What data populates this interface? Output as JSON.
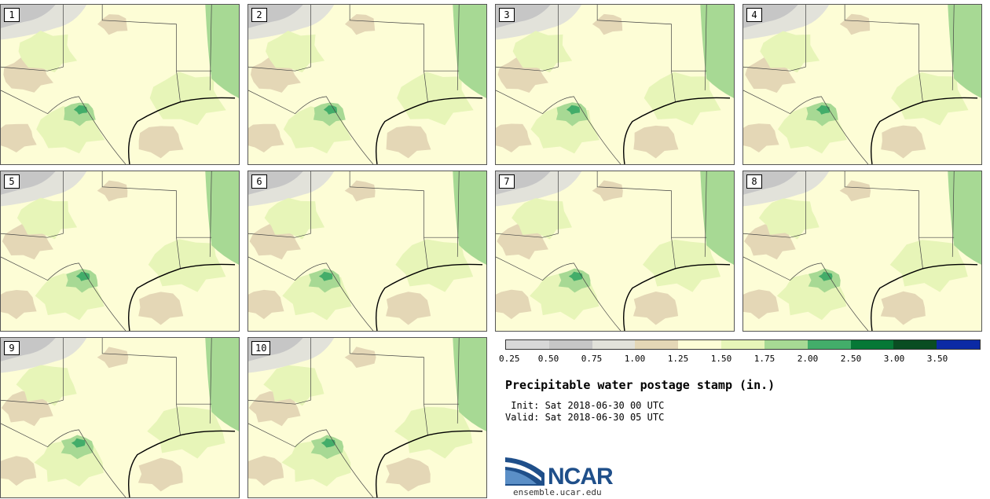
{
  "stamps": [
    {
      "label": "1"
    },
    {
      "label": "2"
    },
    {
      "label": "3"
    },
    {
      "label": "4"
    },
    {
      "label": "5"
    },
    {
      "label": "6"
    },
    {
      "label": "7"
    },
    {
      "label": "8"
    },
    {
      "label": "9"
    },
    {
      "label": "10"
    }
  ],
  "colorbar": {
    "colors": [
      "#d8d8d8",
      "#c6c6c6",
      "#e2e2da",
      "#e4d7b6",
      "#fdfdd6",
      "#e7f5b8",
      "#a7d994",
      "#43ad6a",
      "#067836",
      "#0a4d22",
      "#0b2aa5"
    ],
    "ticks": [
      "0.25",
      "0.50",
      "0.75",
      "1.00",
      "1.25",
      "1.50",
      "1.75",
      "2.00",
      "2.50",
      "3.00",
      "3.50"
    ]
  },
  "title": "Precipitable water postage stamp (in.)",
  "init_line": " Init: Sat 2018-06-30 00 UTC",
  "valid_line": "Valid: Sat 2018-06-30 05 UTC",
  "logo": {
    "text": "NCAR",
    "url": "ensemble.ucar.edu"
  }
}
